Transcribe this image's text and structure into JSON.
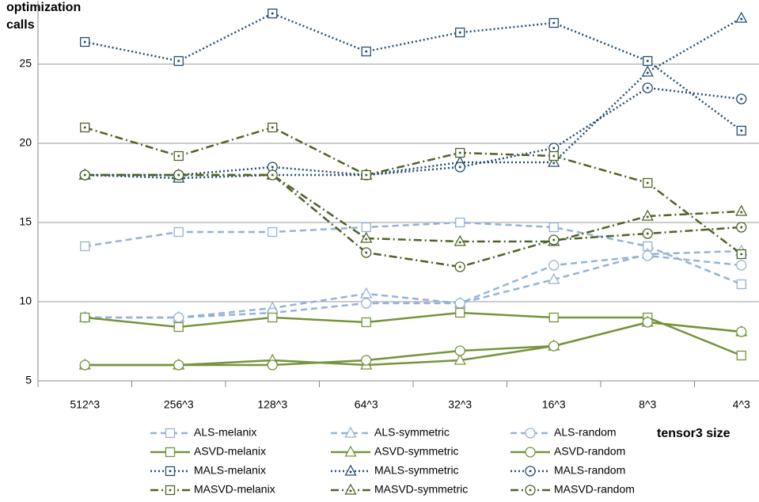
{
  "chart_data": {
    "type": "line",
    "y_label": [
      "optimization",
      "calls"
    ],
    "x_label": "tensor3 size",
    "categories": [
      "512^3",
      "256^3",
      "128^3",
      "64^3",
      "32^3",
      "16^3",
      "8^3",
      "4^3"
    ],
    "ylim": [
      5,
      29
    ],
    "yticks": [
      5,
      10,
      15,
      20,
      25
    ],
    "grid": true,
    "series": [
      {
        "name": "ALS-melanix",
        "color": "#95b3d7",
        "dash": "dashed",
        "marker": "square",
        "values": [
          13.5,
          14.4,
          14.4,
          14.7,
          15.0,
          14.7,
          13.5,
          11.1
        ]
      },
      {
        "name": "ALS-symmetric",
        "color": "#95b3d7",
        "dash": "dashed",
        "marker": "triangle",
        "values": [
          9.0,
          9.0,
          9.6,
          10.5,
          9.9,
          11.4,
          13.0,
          13.2
        ]
      },
      {
        "name": "ALS-random",
        "color": "#95b3d7",
        "dash": "dashed",
        "marker": "circle",
        "values": [
          9.0,
          9.0,
          9.3,
          9.9,
          9.9,
          12.3,
          12.9,
          12.3
        ]
      },
      {
        "name": "ASVD-melanix",
        "color": "#77933c",
        "dash": "solid",
        "marker": "square",
        "values": [
          9.0,
          8.4,
          9.0,
          8.7,
          9.3,
          9.0,
          9.0,
          6.6
        ]
      },
      {
        "name": "ASVD-symmetric",
        "color": "#77933c",
        "dash": "solid",
        "marker": "triangle",
        "values": [
          6.0,
          6.0,
          6.3,
          6.0,
          6.3,
          7.2,
          8.7,
          8.1
        ]
      },
      {
        "name": "ASVD-random",
        "color": "#77933c",
        "dash": "solid",
        "marker": "circle",
        "values": [
          6.0,
          6.0,
          6.0,
          6.3,
          6.9,
          7.2,
          8.7,
          8.1
        ]
      },
      {
        "name": "MALS-melanix",
        "color": "#254d72",
        "dash": "dotted",
        "marker": "square-dot",
        "values": [
          26.4,
          25.2,
          28.2,
          25.8,
          27.0,
          27.6,
          25.2,
          20.8
        ]
      },
      {
        "name": "MALS-symmetric",
        "color": "#254d72",
        "dash": "dotted",
        "marker": "triangle-dot",
        "values": [
          18.0,
          17.8,
          18.0,
          18.0,
          18.8,
          18.8,
          24.5,
          27.9
        ]
      },
      {
        "name": "MALS-random",
        "color": "#254d72",
        "dash": "dotted",
        "marker": "circle-dot",
        "values": [
          18.0,
          18.0,
          18.5,
          18.0,
          18.5,
          19.7,
          23.5,
          22.8
        ]
      },
      {
        "name": "MASVD-melanix",
        "color": "#4f6228",
        "dash": "dashdot",
        "marker": "square-dot",
        "values": [
          21.0,
          19.2,
          21.0,
          18.0,
          19.4,
          19.2,
          17.5,
          13.0
        ]
      },
      {
        "name": "MASVD-symmetric",
        "color": "#4f6228",
        "dash": "dashdot",
        "marker": "triangle-dot",
        "values": [
          18.0,
          18.0,
          18.0,
          14.0,
          13.8,
          13.8,
          15.4,
          15.7
        ]
      },
      {
        "name": "MASVD-random",
        "color": "#4f6228",
        "dash": "dashdot",
        "marker": "circle-dot",
        "values": [
          18.0,
          18.0,
          18.0,
          13.1,
          12.2,
          13.9,
          14.3,
          14.7
        ]
      }
    ]
  }
}
